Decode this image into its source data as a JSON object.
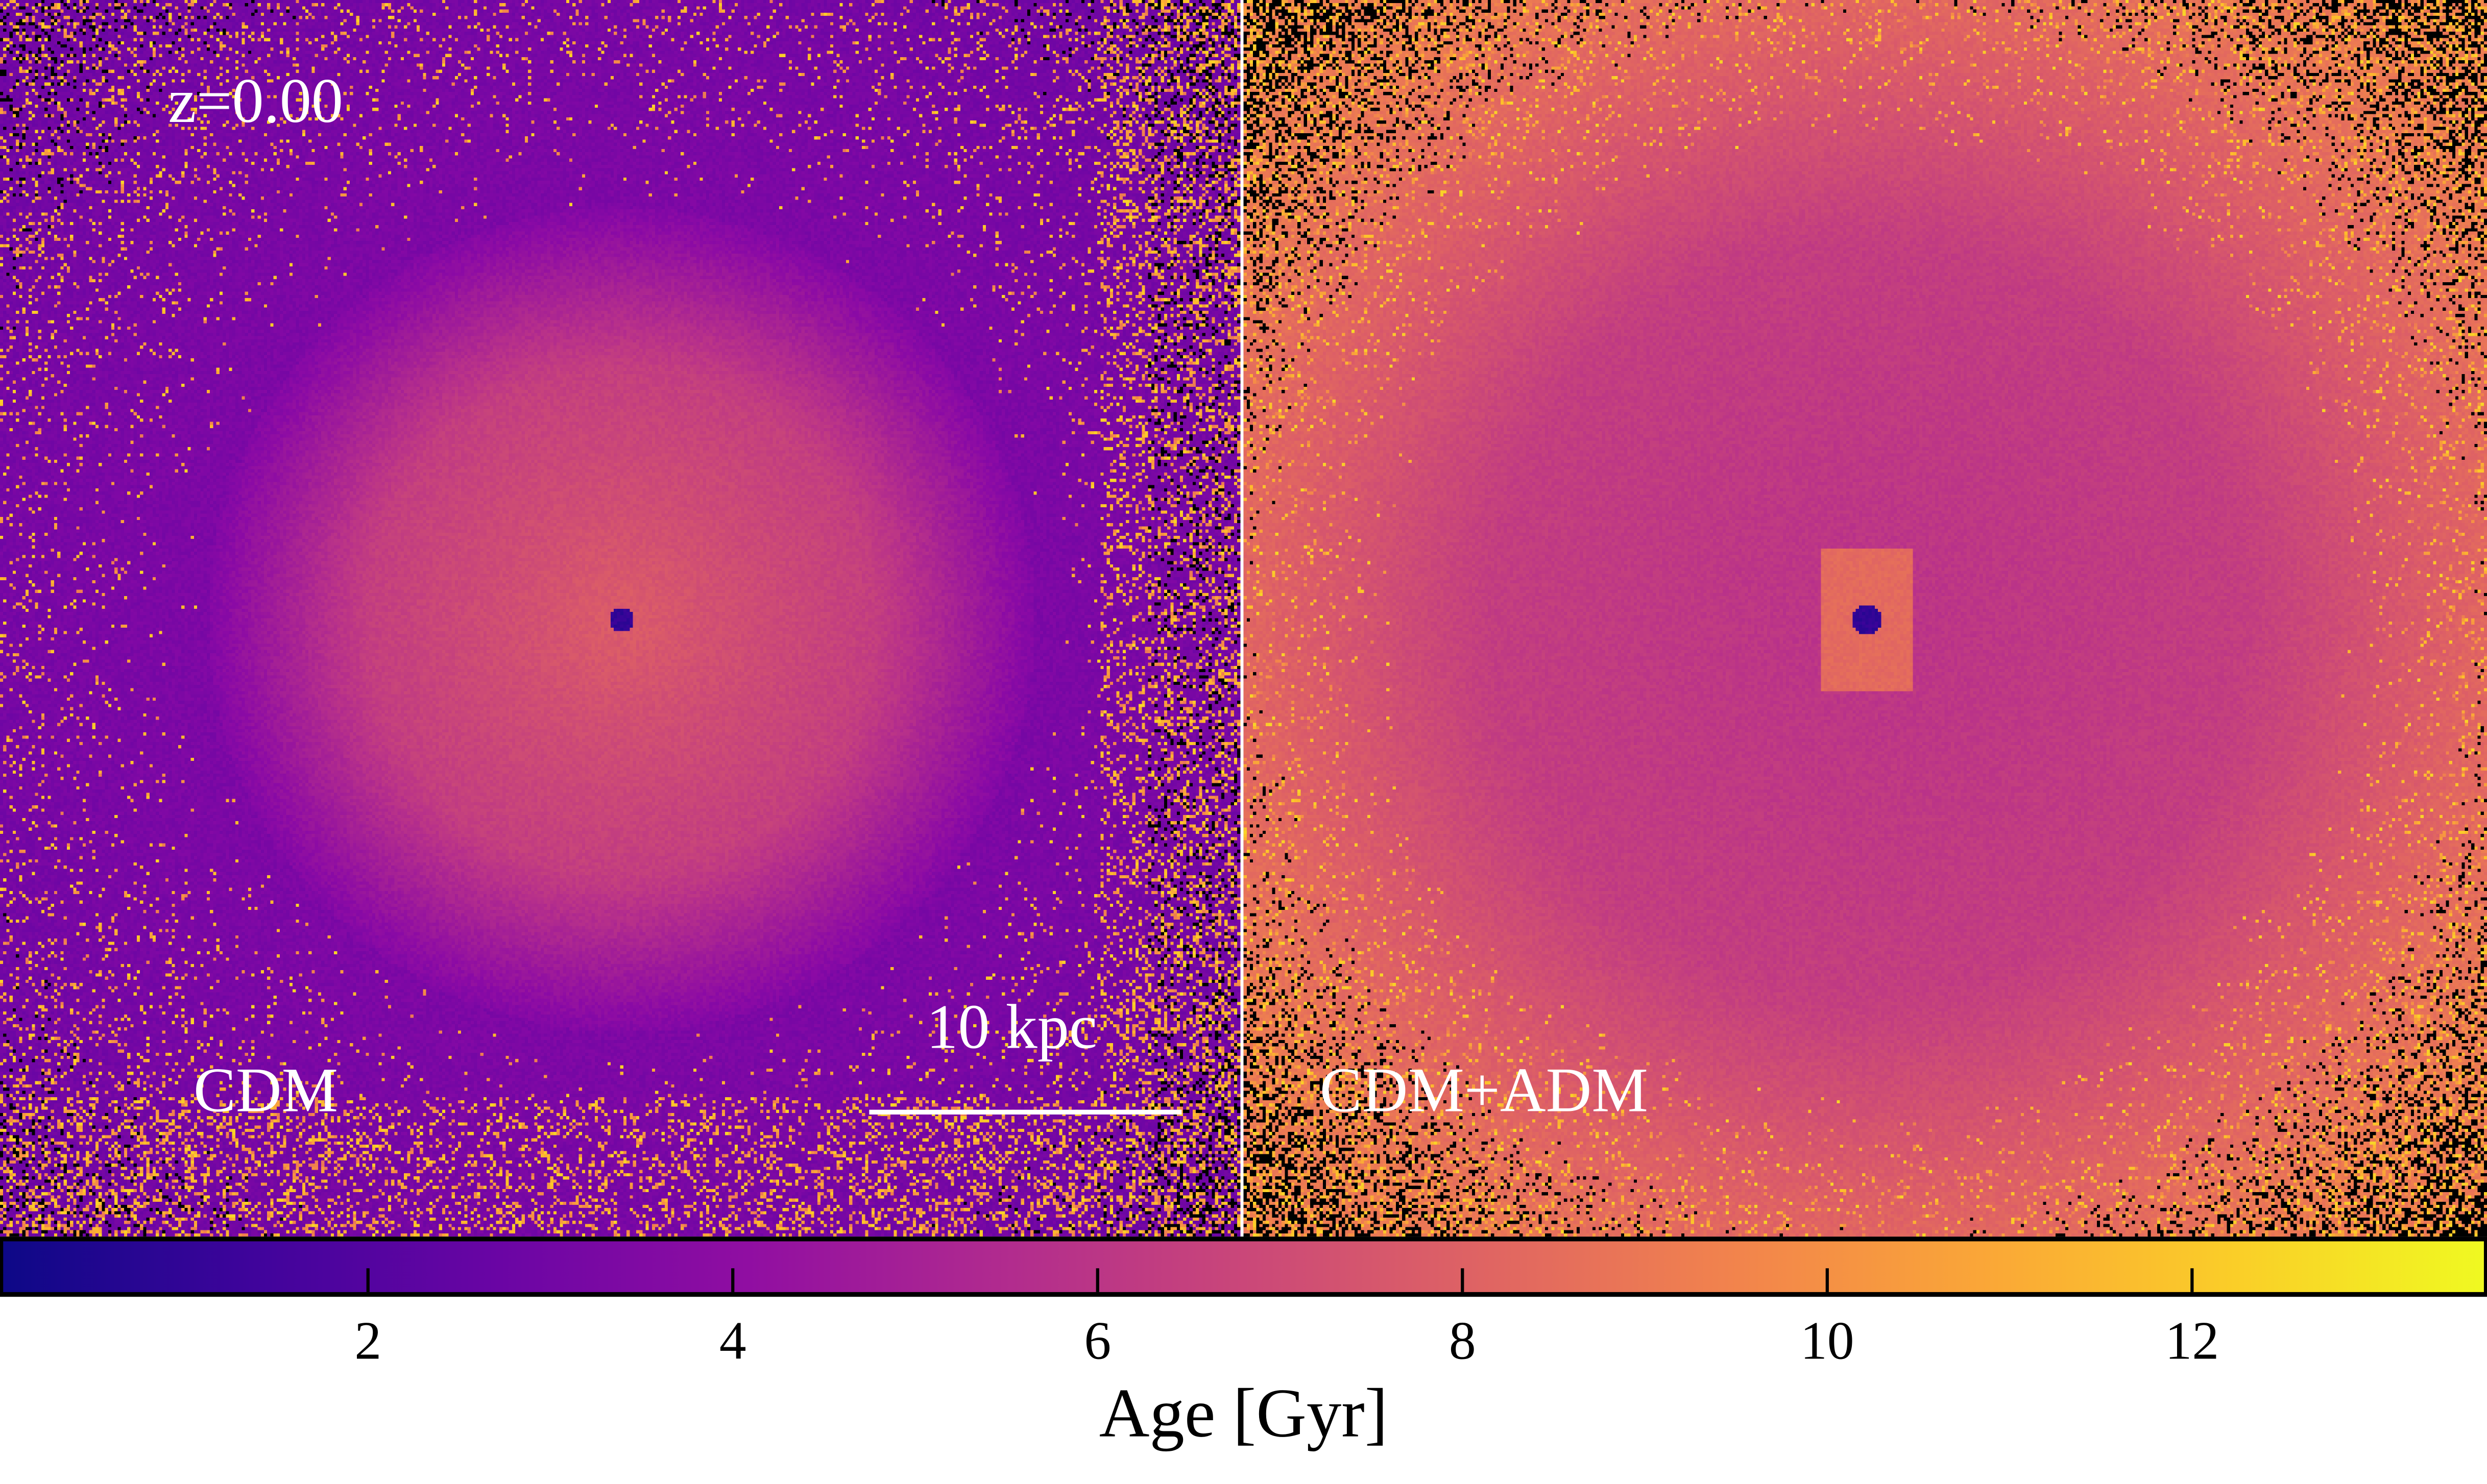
{
  "redshift_label": "z=0.00",
  "panels": [
    {
      "label": "CDM",
      "scale_bar_label": "10 kpc"
    },
    {
      "label": "CDM+ADM"
    }
  ],
  "colorbar": {
    "label": "Age [Gyr]",
    "colormap": "plasma",
    "range": [
      0,
      13.6
    ],
    "ticks": [
      2,
      4,
      6,
      8,
      10,
      12
    ],
    "tick_labels": [
      "2",
      "4",
      "6",
      "8",
      "10",
      "12"
    ]
  }
}
